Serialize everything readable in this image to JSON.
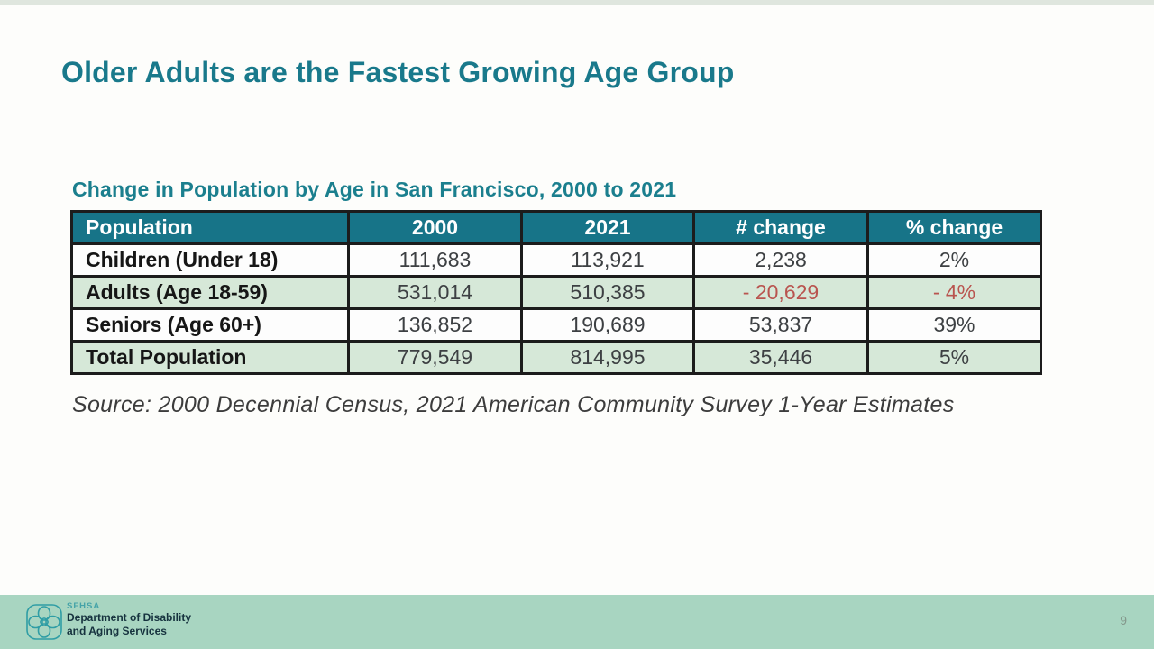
{
  "slide": {
    "title": "Older Adults are the Fastest Growing Age Group",
    "page_number": "9"
  },
  "table": {
    "title": "Change in Population by Age in San Francisco, 2000 to 2021",
    "columns": [
      "Population",
      "2000",
      "2021",
      "# change",
      "% change"
    ],
    "rows": [
      {
        "label": "Children (Under 18)",
        "values": [
          "111,683",
          "113,921",
          "2,238",
          "2%"
        ],
        "highlight": false,
        "negative": false
      },
      {
        "label": "Adults (Age 18-59)",
        "values": [
          "531,014",
          "510,385",
          "- 20,629",
          "- 4%"
        ],
        "highlight": true,
        "negative": true
      },
      {
        "label": "Seniors (Age 60+)",
        "values": [
          "136,852",
          "190,689",
          "53,837",
          "39%"
        ],
        "highlight": false,
        "negative": false
      },
      {
        "label": "Total Population",
        "values": [
          "779,549",
          "814,995",
          "35,446",
          "5%"
        ],
        "highlight": true,
        "negative": false
      }
    ],
    "source": "Source: 2000 Decennial Census, 2021 American Community Survey 1-Year Estimates"
  },
  "footer": {
    "org_abbr": "SFHSA",
    "org_line1": "Department of Disability",
    "org_line2": "and Aging Services"
  },
  "colors": {
    "title_teal": "#19798b",
    "header_bg": "#177488",
    "row_green": "#d6e8d8",
    "negative_red": "#b9544f",
    "footer_bg": "#a8d5c1",
    "top_strip": "#dfe6de",
    "logo_teal": "#2f9da5"
  }
}
